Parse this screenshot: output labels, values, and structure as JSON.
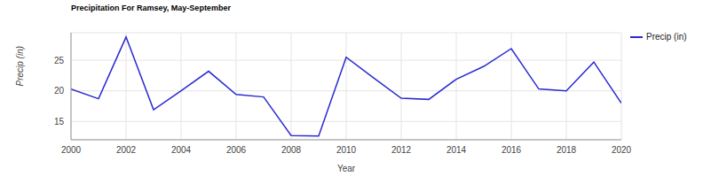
{
  "chart_data": {
    "type": "line",
    "title": "Precipitation For Ramsey, May-September",
    "x_label": "Year",
    "y_label": "Precip (in)",
    "x": [
      2000,
      2001,
      2002,
      2003,
      2004,
      2005,
      2006,
      2007,
      2008,
      2009,
      2010,
      2011,
      2012,
      2013,
      2014,
      2015,
      2016,
      2017,
      2018,
      2019,
      2020
    ],
    "series": [
      {
        "name": "Precip (in)",
        "color": "#2a2ad0",
        "values": [
          20.3,
          18.7,
          28.8,
          16.9,
          20.0,
          23.2,
          19.4,
          19.0,
          12.7,
          12.6,
          25.5,
          22.1,
          18.8,
          18.6,
          21.9,
          24.0,
          26.9,
          20.3,
          20.0,
          24.7,
          18.0
        ]
      }
    ],
    "xlim": [
      2000,
      2020
    ],
    "xticks": [
      2000,
      2002,
      2004,
      2006,
      2008,
      2010,
      2012,
      2014,
      2016,
      2018,
      2020
    ],
    "ylim": [
      12,
      29.5
    ],
    "yticks": [
      15,
      20,
      25
    ],
    "grid": true,
    "legend": "top right"
  }
}
